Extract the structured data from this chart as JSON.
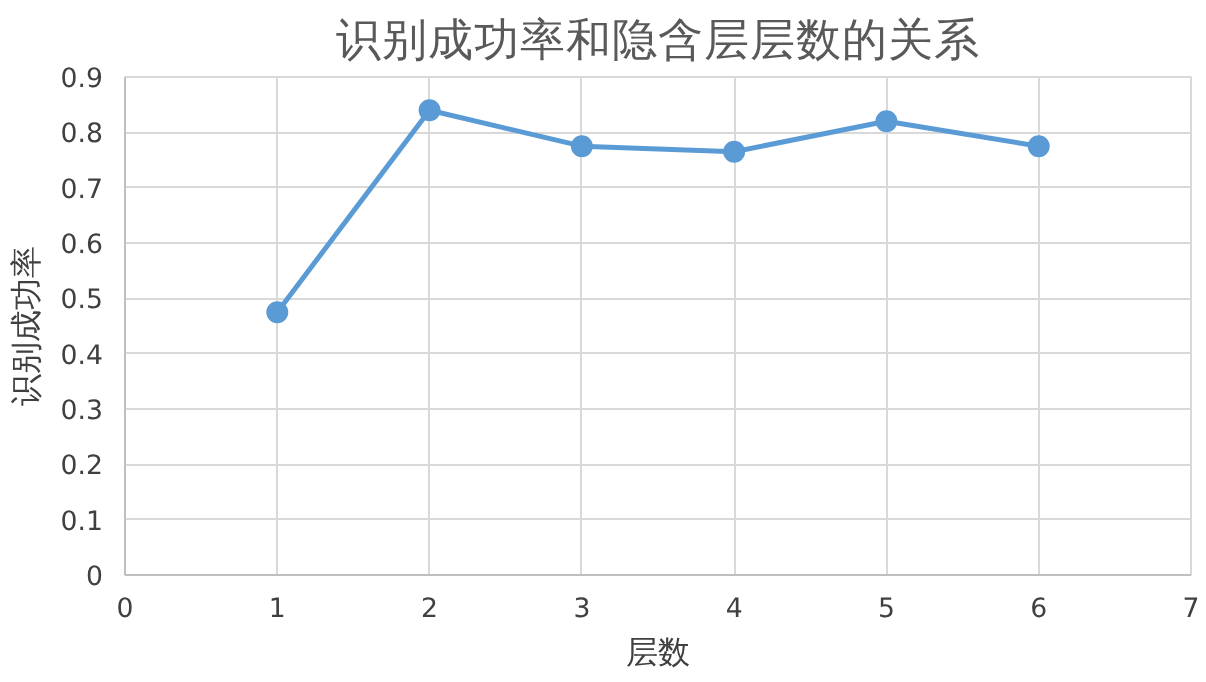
{
  "chart_data": {
    "type": "line",
    "title": "识别成功率和隐含层层数的关系",
    "xlabel": "层数",
    "ylabel": "识别成功率",
    "x": [
      1,
      2,
      3,
      4,
      5,
      6
    ],
    "series": [
      {
        "color": "#5b9bd5",
        "values": [
          0.475,
          0.84,
          0.775,
          0.765,
          0.82,
          0.775
        ]
      }
    ],
    "xlim": [
      0,
      7
    ],
    "xticks": [
      0,
      1,
      2,
      3,
      4,
      5,
      6,
      7
    ],
    "ylim": [
      0,
      0.9
    ],
    "yticks": [
      {
        "value": 0,
        "label": "0"
      },
      0.1,
      0.2,
      0.3,
      0.4,
      0.5,
      0.6,
      0.7,
      0.8,
      0.9
    ],
    "grid": true,
    "marker": "circle",
    "line_style": "solid"
  }
}
